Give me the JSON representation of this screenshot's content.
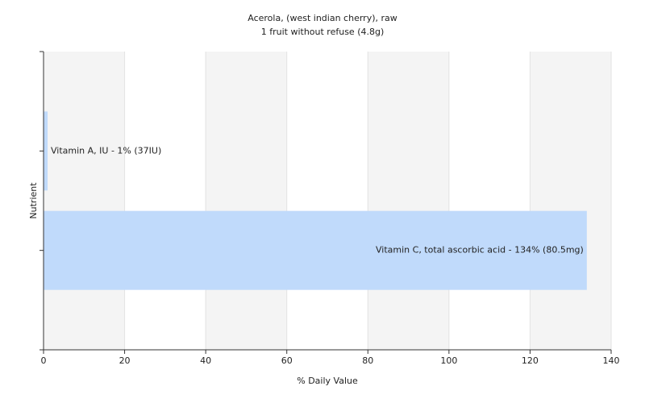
{
  "chart_data": {
    "type": "barh",
    "title": "Acerola, (west indian cherry), raw",
    "subtitle": "1 fruit without refuse (4.8g)",
    "x_label": "% Daily Value",
    "y_label": "Nutrient",
    "values": [
      1,
      134
    ],
    "value_labels": [
      "Vitamin A, IU - 1% (37IU)",
      "Vitamin C, total ascorbic acid - 134% (80.5mg)"
    ],
    "color": "#c0dafb",
    "xlim": [
      0,
      140
    ],
    "xticks": [
      0,
      20,
      40,
      60,
      80,
      100,
      120,
      140
    ],
    "grid": true
  }
}
